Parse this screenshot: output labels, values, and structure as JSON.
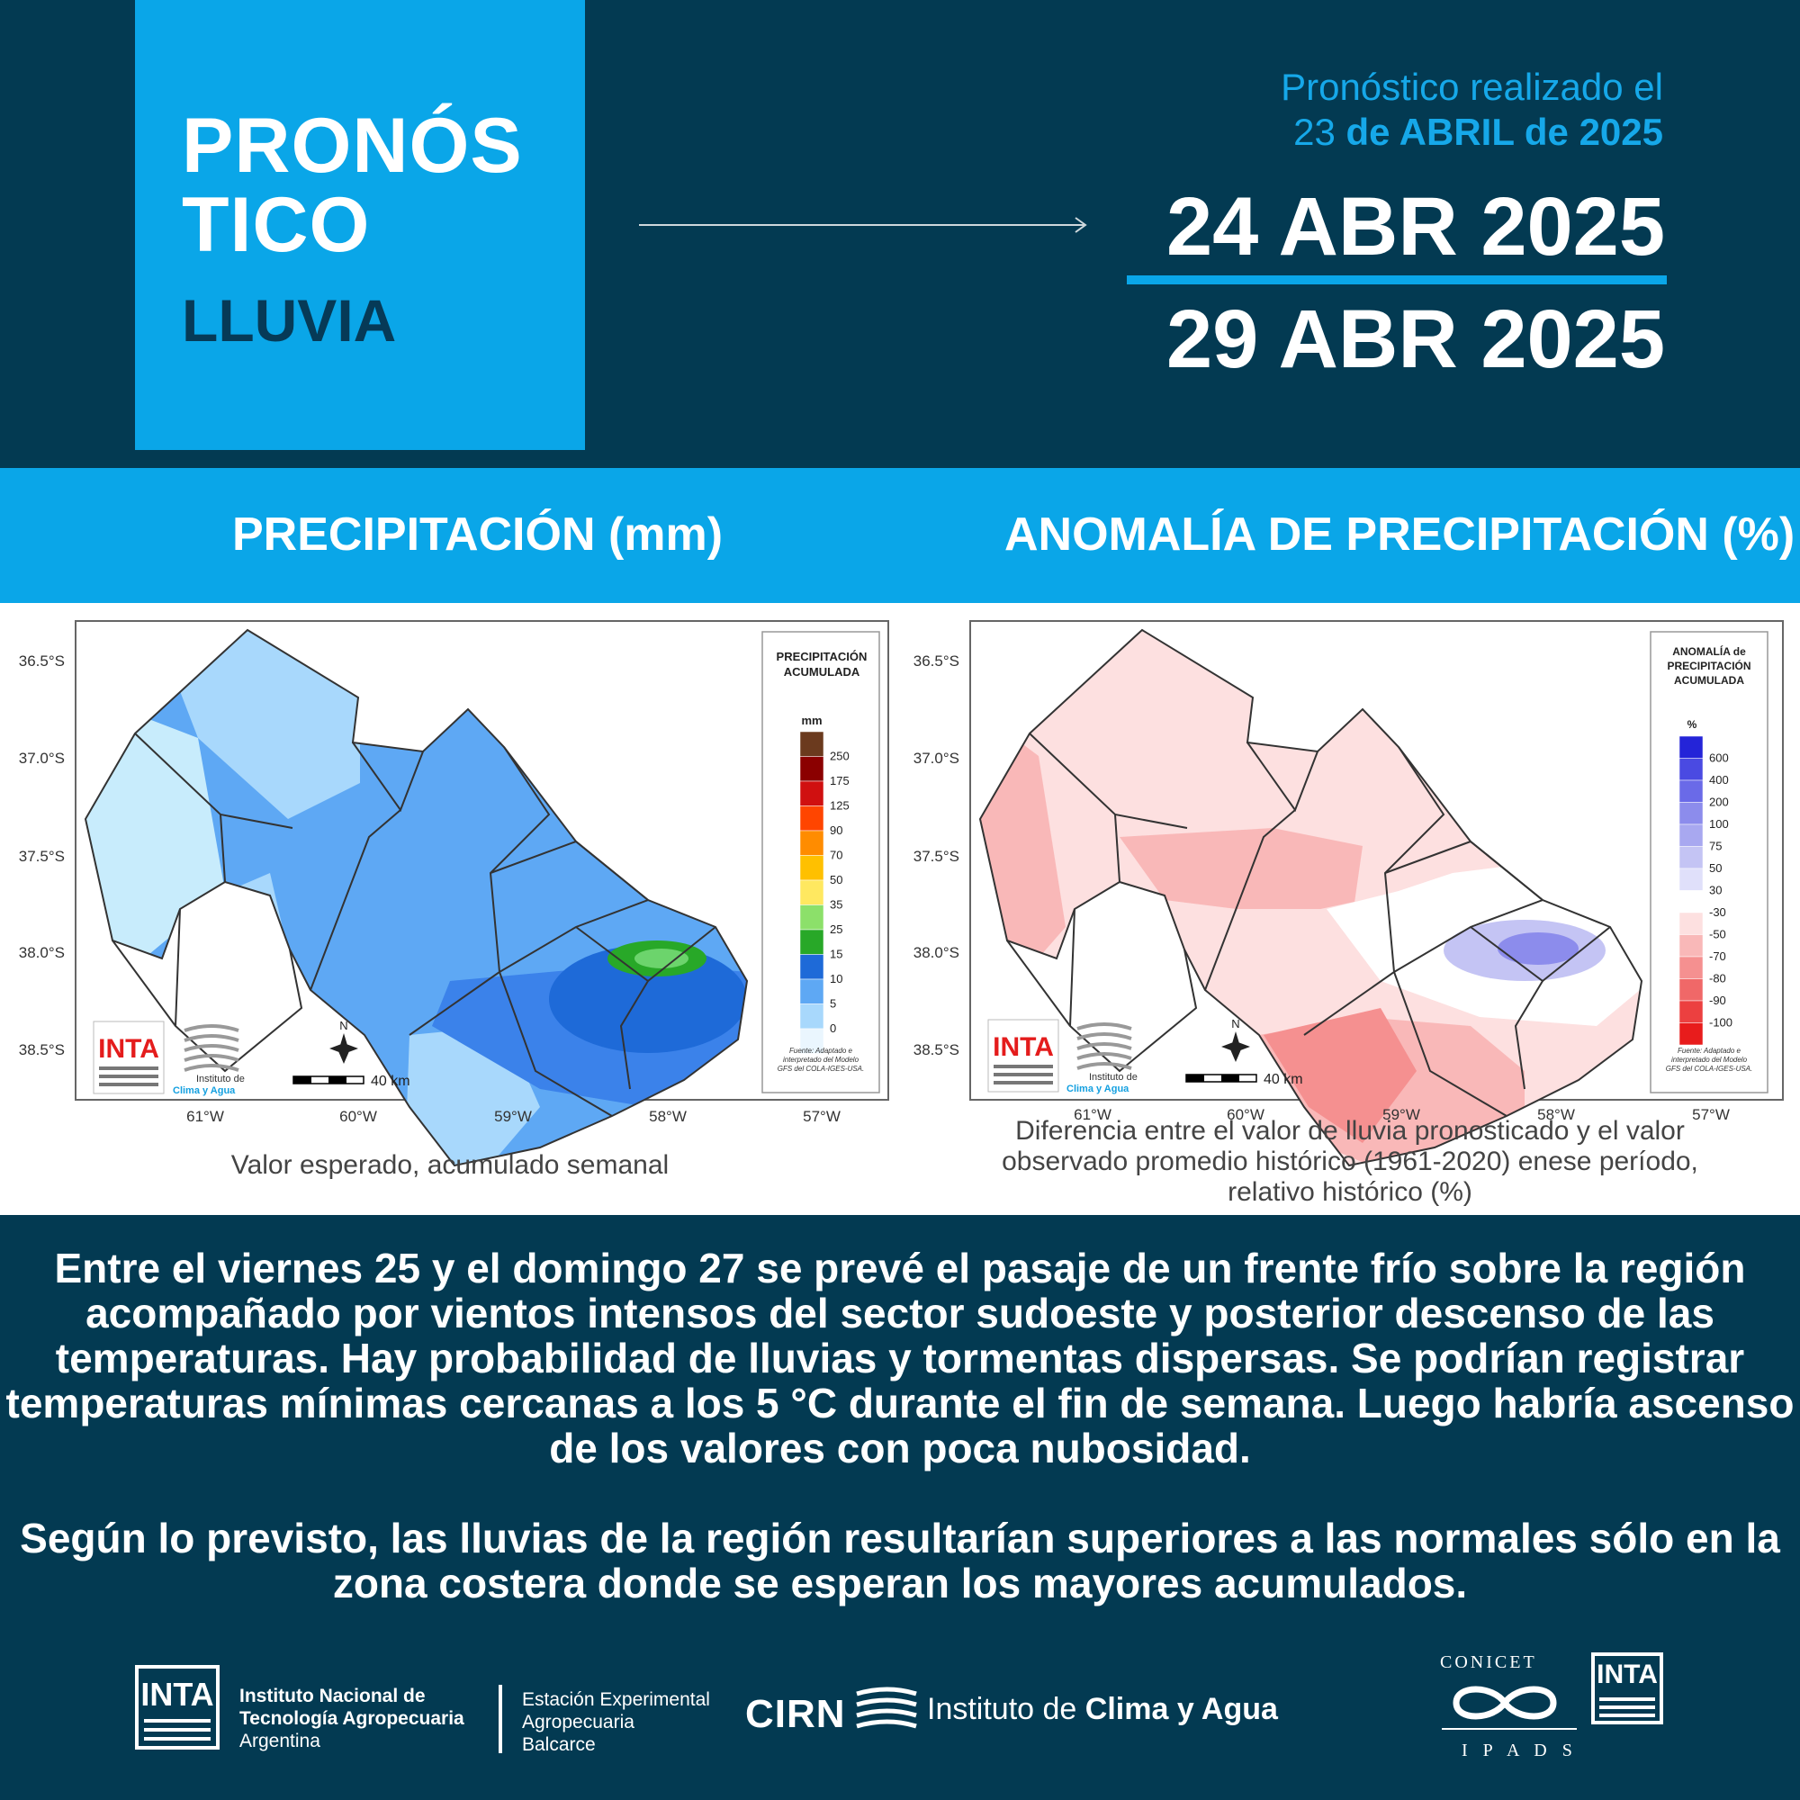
{
  "header": {
    "title_line1": "PRONÓS",
    "title_line2": "TICO",
    "subtitle": "LLUVIA",
    "made_label": "Pronóstico realizado el",
    "made_day": "23",
    "made_rest": "de ABRIL de 2025",
    "date_from": "24 ABR 2025",
    "date_to": "29 ABR 2025"
  },
  "sections": {
    "left_title": "PRECIPITACIÓN (mm)",
    "right_title": "ANOMALÍA DE PRECIPITACIÓN (%)"
  },
  "map_left": {
    "legend_title1": "PRECIPITACIÓN",
    "legend_title2": "ACUMULADA",
    "legend_unit": "mm",
    "legend_values": [
      "250",
      "175",
      "125",
      "90",
      "70",
      "50",
      "35",
      "25",
      "15",
      "10",
      "5",
      "0"
    ],
    "legend_colors": [
      "#6b3a1e",
      "#8b0000",
      "#d01010",
      "#ff4500",
      "#ff8c00",
      "#ffc000",
      "#ffe860",
      "#8ce06a",
      "#28a828",
      "#1e6ad8",
      "#5ea8f4",
      "#a8d8fc",
      "#eaf6fe"
    ],
    "source": "Fuente: Adaptado e interpretado del Modelo GFS del COLA-IGES-USA.",
    "scale": "40 km",
    "north": "N",
    "logo1": "INTA",
    "logo2": "Instituto de",
    "logo3": "Clima y Agua",
    "caption": "Valor esperado, acumulado semanal"
  },
  "map_right": {
    "legend_title1": "ANOMALÍA de",
    "legend_title2": "PRECIPITACIÓN",
    "legend_title3": "ACUMULADA",
    "legend_unit": "%",
    "legend_values": [
      "600",
      "400",
      "200",
      "100",
      "75",
      "50",
      "30",
      "-30",
      "-50",
      "-70",
      "-80",
      "-90",
      "-100"
    ],
    "legend_colors": [
      "#2424d8",
      "#4a4ae2",
      "#6a6ae8",
      "#8c8cec",
      "#a8a8f0",
      "#c4c4f4",
      "#e0e0fa",
      "#ffffff",
      "#fde0e0",
      "#f9b8b8",
      "#f59090",
      "#f06868",
      "#ec4040",
      "#e81c1c"
    ],
    "source": "Fuente: Adaptado e interpretado del Modelo GFS del COLA-IGES-USA.",
    "scale": "40 km",
    "north": "N",
    "logo1": "INTA",
    "logo2": "Instituto de",
    "logo3": "Clima y Agua",
    "caption1": "Diferencia entre el valor de lluvia pronosticado y el valor",
    "caption2": "observado promedio histórico (1961-2020) enese período,",
    "caption3": "relativo histórico (%)"
  },
  "axes": {
    "lat": [
      "36.5°S",
      "37.0°S",
      "37.5°S",
      "38.0°S",
      "38.5°S"
    ],
    "lon": [
      "61°W",
      "60°W",
      "59°W",
      "58°W",
      "57°W"
    ]
  },
  "text": {
    "p1": "Entre el viernes 25 y el domingo 27 se prevé el pasaje de un frente frío sobre la región acompañado por vientos intensos del sector sudoeste y posterior descenso de las temperaturas. Hay probabilidad de lluvias y tormentas dispersas. Se podrían registrar temperaturas mínimas cercanas a los 5 °C durante el fin de semana. Luego habría ascenso de los valores con poca nubosidad.",
    "p2": "Según lo previsto, las lluvias de la región resultarían superiores a las normales sólo en la zona costera donde se esperan los mayores acumulados."
  },
  "footer": {
    "inta": "INTA",
    "inst1": "Instituto Nacional de",
    "inst2": "Tecnología Agropecuaria",
    "inst3": "Argentina",
    "est1": "Estación Experimental",
    "est2": "Agropecuaria",
    "est3": "Balcarce",
    "cirn": "CIRN",
    "ica_pre": "Instituto de",
    "ica_bold": "Clima y Agua",
    "conicet": "CONICET",
    "ipads": "I P A D S",
    "inta2": "INTA"
  }
}
